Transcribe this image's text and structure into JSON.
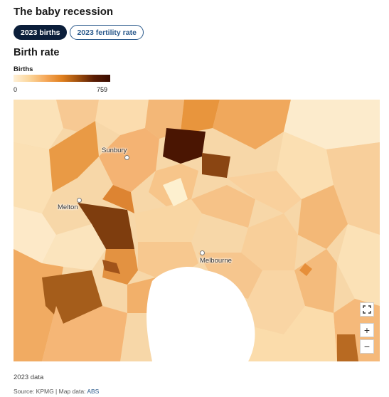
{
  "title": "The baby recession",
  "tabs": [
    {
      "label": "2023 births",
      "active": true
    },
    {
      "label": "2023 fertility rate",
      "active": false
    }
  ],
  "subtitle": "Birth rate",
  "legend": {
    "title": "Births",
    "min": "0",
    "max": "759",
    "colors": [
      "#fff0d6",
      "#fbd59a",
      "#f5a85a",
      "#e0801f",
      "#a0500e",
      "#5a1d04",
      "#3a0c00"
    ]
  },
  "map": {
    "places": [
      {
        "name": "Sunbury"
      },
      {
        "name": "Melton"
      },
      {
        "name": "Melbourne"
      }
    ],
    "controls": {
      "fullscreen": "fullscreen-icon",
      "zoom_in": "+",
      "zoom_out": "−"
    }
  },
  "note": "2023 data",
  "source": {
    "prefix": "Source: KPMG | Map data: ",
    "link": "ABS"
  }
}
